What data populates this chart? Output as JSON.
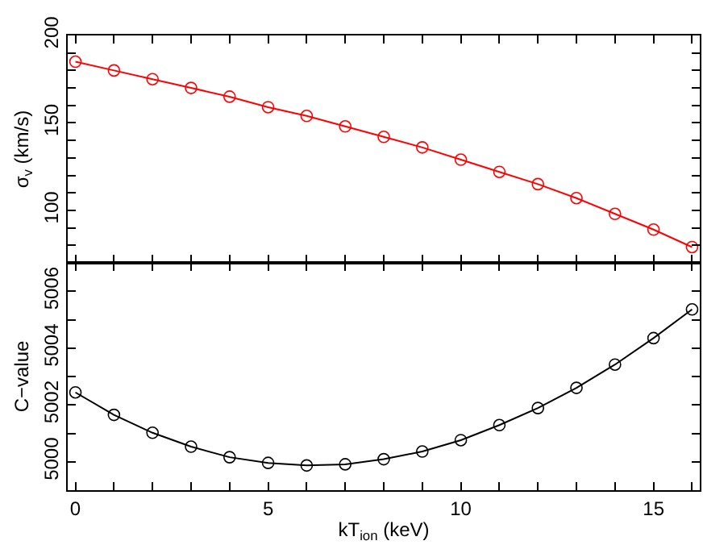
{
  "chart_data": [
    {
      "type": "line",
      "ylabel": "σ$_{v}$ (km/s)",
      "marker": "circle",
      "tick_labels": "y",
      "x": [
        0,
        1,
        2,
        3,
        4,
        5,
        6,
        7,
        8,
        9,
        10,
        11,
        12,
        13,
        14,
        15,
        16
      ],
      "series": [
        {
          "color": "#ff0000",
          "values": [
            185,
            180,
            175,
            170,
            165,
            159,
            154,
            148,
            142,
            136,
            129,
            122,
            115,
            107,
            98,
            89,
            79
          ]
        }
      ],
      "xlim": [
        -0.2,
        16.2
      ],
      "xticks": [
        0,
        {
          "value": 1,
          "label": null
        },
        {
          "value": 2,
          "label": null
        },
        {
          "value": 3,
          "label": null
        },
        {
          "value": 4,
          "label": null
        },
        5,
        {
          "value": 6,
          "label": null
        },
        {
          "value": 7,
          "label": null
        },
        {
          "value": 8,
          "label": null
        },
        {
          "value": 9,
          "label": null
        },
        10,
        {
          "value": 11,
          "label": null
        },
        {
          "value": 12,
          "label": null
        },
        {
          "value": 13,
          "label": null
        },
        {
          "value": 14,
          "label": null
        },
        15,
        {
          "value": 16,
          "label": null
        }
      ],
      "ylim": [
        70,
        200
      ],
      "yticks": [
        {
          "value": 80,
          "label": null
        },
        {
          "value": 90,
          "label": null
        },
        100,
        {
          "value": 110,
          "label": null
        },
        {
          "value": 120,
          "label": null
        },
        {
          "value": 130,
          "label": null
        },
        {
          "value": 140,
          "label": null
        },
        150,
        {
          "value": 160,
          "label": null
        },
        {
          "value": 170,
          "label": null
        },
        {
          "value": 180,
          "label": null
        },
        {
          "value": 190,
          "label": null
        },
        200
      ]
    },
    {
      "type": "line",
      "xlabel": "kT$_{ion}$ (keV)",
      "ylabel": "C−value",
      "marker": "circle",
      "x": [
        0,
        1,
        2,
        3,
        4,
        5,
        6,
        7,
        8,
        9,
        10,
        11,
        12,
        13,
        14,
        15,
        16
      ],
      "series": [
        {
          "color": "#000000",
          "values": [
            5002.44,
            5001.65,
            5001.02,
            5000.53,
            5000.16,
            4999.96,
            4999.87,
            4999.91,
            5000.09,
            5000.36,
            5000.76,
            5001.29,
            5001.89,
            5002.6,
            5003.42,
            5004.35,
            5005.36
          ]
        }
      ],
      "xlim": [
        -0.2,
        16.2
      ],
      "xticks": [
        0,
        {
          "value": 1,
          "label": null
        },
        {
          "value": 2,
          "label": null
        },
        {
          "value": 3,
          "label": null
        },
        {
          "value": 4,
          "label": null
        },
        5,
        {
          "value": 6,
          "label": null
        },
        {
          "value": 7,
          "label": null
        },
        {
          "value": 8,
          "label": null
        },
        {
          "value": 9,
          "label": null
        },
        10,
        {
          "value": 11,
          "label": null
        },
        {
          "value": 12,
          "label": null
        },
        {
          "value": 13,
          "label": null
        },
        {
          "value": 14,
          "label": null
        },
        15,
        {
          "value": 16,
          "label": null
        }
      ],
      "ylim": [
        4999,
        5007
      ],
      "yticks": [
        5000,
        {
          "value": 5001,
          "label": null
        },
        5002,
        {
          "value": 5003,
          "label": null
        },
        5004,
        {
          "value": 5005,
          "label": null
        },
        5006
      ]
    }
  ]
}
